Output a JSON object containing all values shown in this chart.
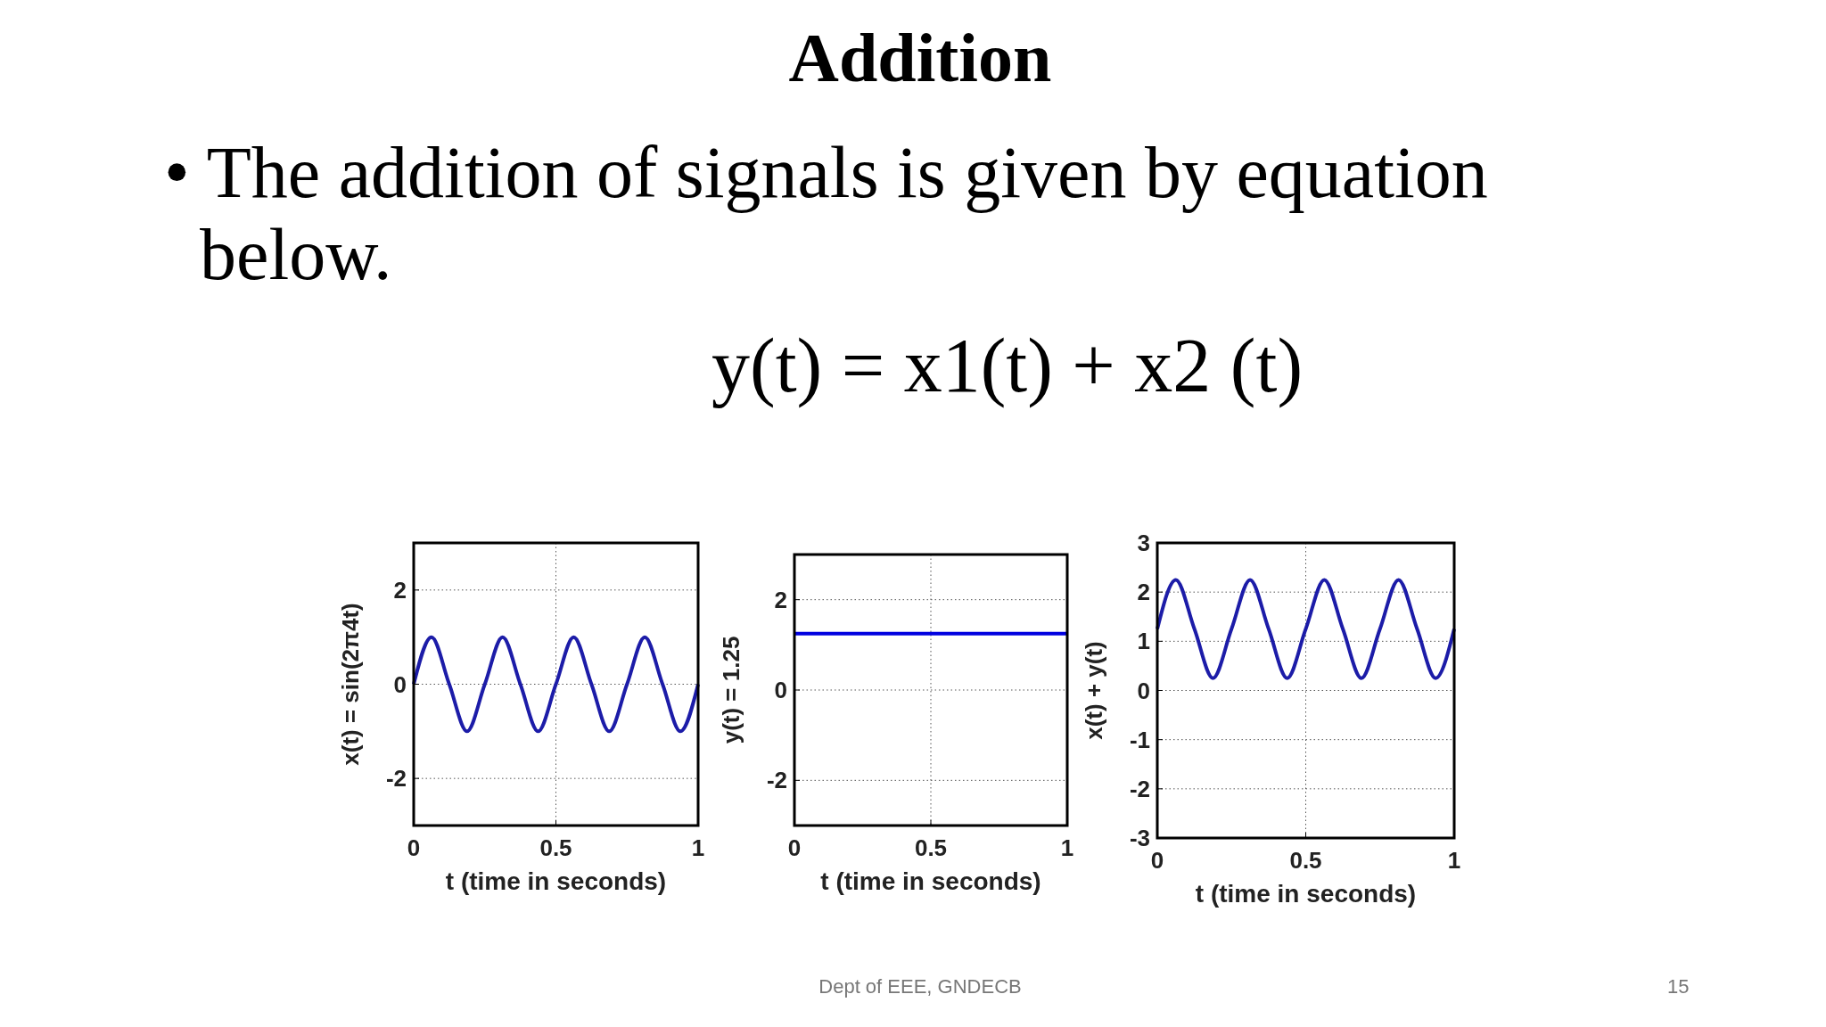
{
  "chart_data": [
    {
      "type": "other",
      "title": "Addition",
      "annotations": [
        "• The addition of signals is given by equation below.",
        "y(t) = x1(t) + x2 (t)",
        "Dept of EEE, GNDECB",
        "15"
      ]
    },
    {
      "type": "line",
      "xlabel": "t (time in seconds)",
      "ylabel": "x(t) = sin(2π4t)",
      "xlim": [
        0,
        1
      ],
      "xticks": [
        0,
        0.5,
        1
      ],
      "ylim": [
        -3,
        3
      ],
      "yticks": [
        -2,
        0,
        2
      ],
      "grid": true,
      "line_style": "solid",
      "series": [
        {
          "color": "#1c1ca8",
          "x": [
            0,
            0.0625,
            0.125,
            0.1875,
            0.25,
            0.3125,
            0.375,
            0.4375,
            0.5,
            0.5625,
            0.625,
            0.6875,
            0.75,
            0.8125,
            0.875,
            0.9375,
            1
          ],
          "values": [
            0,
            1,
            0,
            -1,
            0,
            1,
            0,
            -1,
            0,
            1,
            0,
            -1,
            0,
            1,
            0,
            -1,
            0
          ]
        }
      ]
    },
    {
      "type": "line",
      "xlabel": "t (time in seconds)",
      "ylabel": "y(t) = 1.25",
      "xlim": [
        0,
        1
      ],
      "xticks": [
        0,
        0.5,
        1
      ],
      "ylim": [
        -3,
        3
      ],
      "yticks": [
        -2,
        0,
        2
      ],
      "grid": true,
      "line_style": "solid",
      "series": [
        {
          "color": "#0000e0",
          "x": [
            0,
            1
          ],
          "values": [
            1.25,
            1.25
          ]
        }
      ]
    },
    {
      "type": "line",
      "xlabel": "t (time in seconds)",
      "ylabel": "x(t) + y(t)",
      "xlim": [
        0,
        1
      ],
      "xticks": [
        0,
        0.5,
        1
      ],
      "ylim": [
        -3,
        3
      ],
      "yticks": [
        -3,
        -2,
        -1,
        0,
        1,
        2,
        3
      ],
      "grid": true,
      "line_style": "solid",
      "series": [
        {
          "color": "#1c1ca8",
          "x": [
            0,
            0.0625,
            0.125,
            0.1875,
            0.25,
            0.3125,
            0.375,
            0.4375,
            0.5,
            0.5625,
            0.625,
            0.6875,
            0.75,
            0.8125,
            0.875,
            0.9375,
            1
          ],
          "values": [
            1.25,
            2.25,
            1.25,
            0.25,
            1.25,
            2.25,
            1.25,
            0.25,
            1.25,
            2.25,
            1.25,
            0.25,
            1.25,
            2.25,
            1.25,
            0.25,
            1.25
          ]
        }
      ]
    }
  ]
}
